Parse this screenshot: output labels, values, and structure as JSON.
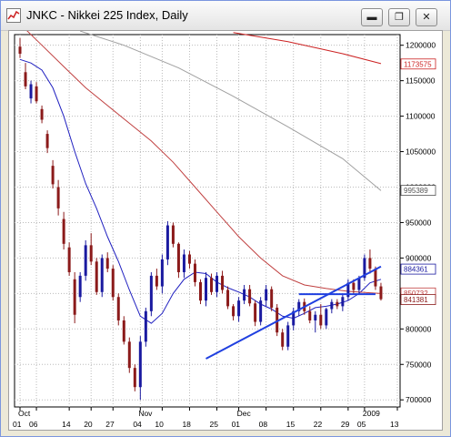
{
  "window": {
    "title": "JNKC - Nikkei 225 Index, Daily",
    "minimize_glyph": "▬",
    "restore_glyph": "❐",
    "close_glyph": "✕"
  },
  "colors": {
    "up_candle": "#1a1aa0",
    "down_candle": "#8b1a1a",
    "ma_short": "#2020c0",
    "ma_medium": "#c04040",
    "ma_long": "#a0a0a0",
    "ma_slow": "#cc2222",
    "trendline": "#2040e0",
    "price_tag_bg": "#ffffff"
  },
  "chart_data": {
    "type": "candlestick",
    "title": "",
    "ylim": [
      690,
      1215
    ],
    "y_ticks": [
      700,
      750,
      800,
      850,
      900,
      950,
      1000,
      1050,
      1100,
      1150,
      1200
    ],
    "y_tick_labels": [
      "700000",
      "750000",
      "800000",
      "850000",
      "900000",
      "950000",
      "1000000",
      "1050000",
      "1100000",
      "1150000",
      "1200000"
    ],
    "x_day_labels": [
      "01",
      "06",
      "14",
      "20",
      "27",
      "04",
      "10",
      "18",
      "25",
      "01",
      "08",
      "15",
      "22",
      "29",
      "05",
      "13"
    ],
    "x_day_index": [
      1,
      4,
      10,
      14,
      18,
      23,
      27,
      32,
      37,
      41,
      46,
      51,
      56,
      61,
      64,
      70
    ],
    "x_month_labels": [
      "Oct",
      "Nov",
      "Dec",
      "2009"
    ],
    "x_month_index": [
      1,
      23,
      41,
      64
    ],
    "price_tags": [
      {
        "label": "1173575",
        "value": 1173.575,
        "color": "#cc2222"
      },
      {
        "label": "995389",
        "value": 995.389,
        "color": "#555555"
      },
      {
        "label": "884361",
        "value": 884.361,
        "color": "#1a1aa0"
      },
      {
        "label": "850732",
        "value": 850.732,
        "color": "#c04040"
      },
      {
        "label": "841381",
        "value": 841.381,
        "color": "#8b1a1a"
      }
    ],
    "candles": [
      [
        1,
        1198,
        1210,
        1182,
        1188
      ],
      [
        2,
        1162,
        1175,
        1138,
        1142
      ],
      [
        3,
        1125,
        1150,
        1118,
        1145
      ],
      [
        4,
        1142,
        1148,
        1118,
        1121
      ],
      [
        5,
        1110,
        1115,
        1090,
        1095
      ],
      [
        6,
        1075,
        1080,
        1048,
        1055
      ],
      [
        7,
        1030,
        1038,
        998,
        1004
      ],
      [
        8,
        1000,
        1010,
        960,
        970
      ],
      [
        9,
        955,
        965,
        912,
        920
      ],
      [
        10,
        915,
        922,
        875,
        880
      ],
      [
        11,
        870,
        880,
        808,
        820
      ],
      [
        12,
        845,
        880,
        838,
        875
      ],
      [
        13,
        875,
        925,
        868,
        918
      ],
      [
        14,
        918,
        935,
        890,
        895
      ],
      [
        15,
        895,
        900,
        848,
        852
      ],
      [
        16,
        852,
        905,
        845,
        900
      ],
      [
        17,
        900,
        908,
        880,
        885
      ],
      [
        18,
        885,
        890,
        840,
        845
      ],
      [
        19,
        845,
        850,
        805,
        812
      ],
      [
        20,
        812,
        818,
        778,
        782
      ],
      [
        21,
        782,
        788,
        738,
        745
      ],
      [
        22,
        745,
        750,
        712,
        718
      ],
      [
        23,
        718,
        790,
        700,
        782
      ],
      [
        24,
        782,
        830,
        775,
        825
      ],
      [
        25,
        825,
        880,
        818,
        875
      ],
      [
        26,
        875,
        885,
        855,
        860
      ],
      [
        27,
        860,
        905,
        850,
        898
      ],
      [
        28,
        898,
        952,
        890,
        946
      ],
      [
        29,
        946,
        950,
        915,
        920
      ],
      [
        30,
        920,
        922,
        872,
        880
      ],
      [
        31,
        880,
        912,
        872,
        905
      ],
      [
        32,
        905,
        910,
        885,
        892
      ],
      [
        33,
        892,
        898,
        860,
        866
      ],
      [
        34,
        866,
        870,
        835,
        840
      ],
      [
        35,
        840,
        880,
        832,
        872
      ],
      [
        36,
        872,
        878,
        848,
        852
      ],
      [
        37,
        852,
        880,
        845,
        875
      ],
      [
        38,
        875,
        882,
        850,
        855
      ],
      [
        39,
        855,
        860,
        828,
        832
      ],
      [
        40,
        832,
        835,
        812,
        818
      ],
      [
        41,
        818,
        845,
        810,
        840
      ],
      [
        42,
        840,
        862,
        835,
        856
      ],
      [
        43,
        856,
        862,
        832,
        836
      ],
      [
        44,
        836,
        840,
        804,
        810
      ],
      [
        45,
        810,
        845,
        805,
        840
      ],
      [
        46,
        840,
        862,
        832,
        856
      ],
      [
        47,
        856,
        860,
        825,
        830
      ],
      [
        48,
        830,
        835,
        790,
        795
      ],
      [
        49,
        795,
        800,
        770,
        775
      ],
      [
        50,
        775,
        810,
        770,
        805
      ],
      [
        51,
        805,
        830,
        798,
        825
      ],
      [
        52,
        825,
        842,
        818,
        838
      ],
      [
        53,
        838,
        843,
        820,
        825
      ],
      [
        54,
        825,
        832,
        808,
        812
      ],
      [
        55,
        812,
        825,
        795,
        820
      ],
      [
        56,
        820,
        835,
        800,
        805
      ],
      [
        57,
        805,
        830,
        800,
        828
      ],
      [
        58,
        828,
        842,
        822,
        838
      ],
      [
        59,
        838,
        842,
        828,
        832
      ],
      [
        60,
        832,
        850,
        825,
        845
      ],
      [
        61,
        845,
        870,
        840,
        865
      ],
      [
        62,
        865,
        870,
        848,
        855
      ],
      [
        63,
        855,
        875,
        850,
        872
      ],
      [
        64,
        872,
        905,
        868,
        900
      ],
      [
        65,
        900,
        912,
        878,
        885
      ],
      [
        66,
        885,
        888,
        855,
        860
      ],
      [
        67,
        860,
        865,
        840,
        842
      ]
    ],
    "series": [
      {
        "name": "",
        "type": "ma",
        "values": [
          [
            1,
            1180
          ],
          [
            3,
            1175
          ],
          [
            5,
            1165
          ],
          [
            7,
            1140
          ],
          [
            9,
            1100
          ],
          [
            11,
            1050
          ],
          [
            13,
            1005
          ],
          [
            15,
            970
          ],
          [
            17,
            930
          ],
          [
            19,
            895
          ],
          [
            21,
            855
          ],
          [
            23,
            818
          ],
          [
            25,
            808
          ],
          [
            27,
            822
          ],
          [
            29,
            850
          ],
          [
            31,
            870
          ],
          [
            33,
            880
          ],
          [
            35,
            878
          ],
          [
            37,
            866
          ],
          [
            39,
            858
          ],
          [
            41,
            852
          ],
          [
            43,
            845
          ],
          [
            45,
            835
          ],
          [
            47,
            828
          ],
          [
            49,
            818
          ],
          [
            51,
            815
          ],
          [
            53,
            822
          ],
          [
            55,
            830
          ],
          [
            57,
            832
          ],
          [
            59,
            835
          ],
          [
            61,
            840
          ],
          [
            63,
            850
          ],
          [
            65,
            865
          ],
          [
            67,
            870
          ]
        ]
      },
      {
        "name": "",
        "type": "ma",
        "values": [
          [
            1,
            1230
          ],
          [
            5,
            1200
          ],
          [
            9,
            1170
          ],
          [
            13,
            1140
          ],
          [
            17,
            1115
          ],
          [
            21,
            1090
          ],
          [
            25,
            1065
          ],
          [
            29,
            1035
          ],
          [
            33,
            1000
          ],
          [
            37,
            965
          ],
          [
            41,
            930
          ],
          [
            45,
            900
          ],
          [
            49,
            875
          ],
          [
            53,
            862
          ],
          [
            57,
            857
          ],
          [
            61,
            853
          ],
          [
            65,
            851
          ],
          [
            67,
            850
          ]
        ]
      },
      {
        "name": "",
        "type": "ma",
        "values": [
          [
            12,
            1220
          ],
          [
            20,
            1200
          ],
          [
            30,
            1168
          ],
          [
            40,
            1128
          ],
          [
            50,
            1085
          ],
          [
            60,
            1040
          ],
          [
            67,
            995
          ]
        ]
      },
      {
        "name": "",
        "type": "ma",
        "values": [
          [
            40,
            1218
          ],
          [
            50,
            1205
          ],
          [
            60,
            1188
          ],
          [
            67,
            1174
          ]
        ]
      }
    ],
    "trendlines": [
      {
        "from": [
          35,
          758
        ],
        "to": [
          67,
          888
        ]
      },
      {
        "from": [
          52,
          849
        ],
        "to": [
          66,
          849
        ]
      }
    ]
  }
}
